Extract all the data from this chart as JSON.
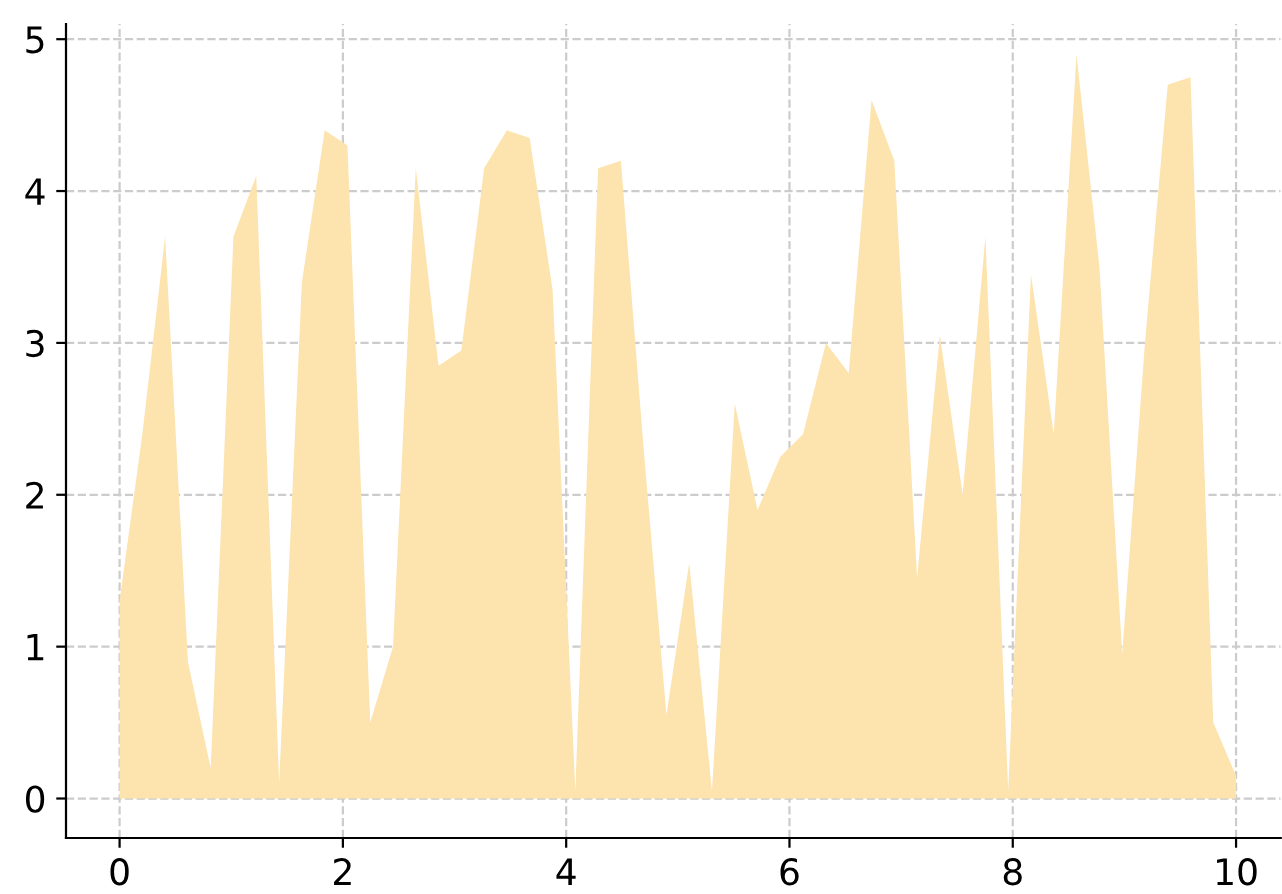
{
  "chart_data": {
    "type": "area",
    "color": "#fde3ae",
    "x": [
      0,
      0.204,
      0.408,
      0.612,
      0.816,
      1.02,
      1.224,
      1.429,
      1.633,
      1.837,
      2.041,
      2.245,
      2.449,
      2.653,
      2.857,
      3.061,
      3.265,
      3.469,
      3.673,
      3.878,
      4.082,
      4.286,
      4.49,
      4.694,
      4.898,
      5.102,
      5.306,
      5.51,
      5.714,
      5.918,
      6.122,
      6.327,
      6.531,
      6.735,
      6.939,
      7.143,
      7.347,
      7.551,
      7.755,
      7.959,
      8.163,
      8.367,
      8.571,
      8.776,
      8.98,
      9.184,
      9.388,
      9.592,
      9.796,
      10
    ],
    "values": [
      1.3,
      2.4,
      3.7,
      0.9,
      0.2,
      3.7,
      4.1,
      0.1,
      3.4,
      4.4,
      4.3,
      0.5,
      1.0,
      4.15,
      2.85,
      2.95,
      4.15,
      4.4,
      4.35,
      3.35,
      0.05,
      4.15,
      4.2,
      2.3,
      0.55,
      1.55,
      0.05,
      2.6,
      1.9,
      2.25,
      2.4,
      3.0,
      2.8,
      4.6,
      4.2,
      1.45,
      3.05,
      2.0,
      3.7,
      0.05,
      3.45,
      2.4,
      4.9,
      3.5,
      0.95,
      3.0,
      4.7,
      4.75,
      0.5,
      0.15
    ],
    "xlim": [
      -0.48,
      10.4
    ],
    "ylim": [
      -0.26,
      5.1
    ],
    "xticks": [
      0,
      2,
      4,
      6,
      8,
      10
    ],
    "yticks": [
      0,
      1,
      2,
      3,
      4,
      5
    ],
    "grid": true,
    "line_style": "dashed"
  }
}
